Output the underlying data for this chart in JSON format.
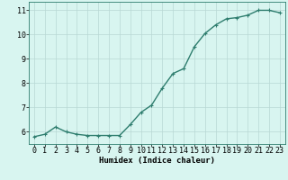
{
  "x": [
    0,
    1,
    2,
    3,
    4,
    5,
    6,
    7,
    8,
    9,
    10,
    11,
    12,
    13,
    14,
    15,
    16,
    17,
    18,
    19,
    20,
    21,
    22,
    23
  ],
  "y": [
    5.8,
    5.9,
    6.2,
    6.0,
    5.9,
    5.85,
    5.85,
    5.85,
    5.85,
    6.3,
    6.8,
    7.1,
    7.8,
    8.4,
    8.6,
    9.5,
    10.05,
    10.4,
    10.65,
    10.7,
    10.8,
    11.0,
    11.0,
    10.9
  ],
  "line_color": "#2e7d6e",
  "marker": "+",
  "marker_size": 3,
  "bg_color": "#d8f5f0",
  "grid_color": "#b8d8d4",
  "xlabel": "Humidex (Indice chaleur)",
  "ylim": [
    5.5,
    11.35
  ],
  "xlim": [
    -0.5,
    23.5
  ],
  "yticks": [
    6,
    7,
    8,
    9,
    10,
    11
  ],
  "xticks": [
    0,
    1,
    2,
    3,
    4,
    5,
    6,
    7,
    8,
    9,
    10,
    11,
    12,
    13,
    14,
    15,
    16,
    17,
    18,
    19,
    20,
    21,
    22,
    23
  ],
  "label_fontsize": 6.5,
  "tick_fontsize": 6,
  "linewidth": 1.0
}
